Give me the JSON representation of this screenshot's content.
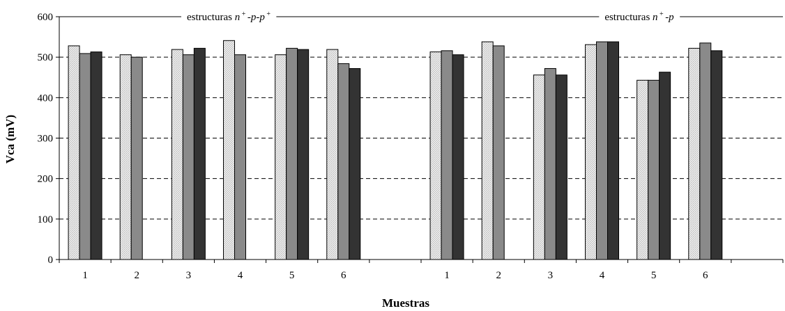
{
  "chart_data": {
    "type": "bar",
    "xlabel": "Muestras",
    "ylabel": "Vca (mV)",
    "ylim": [
      0,
      600
    ],
    "yticks": [
      0,
      100,
      200,
      300,
      400,
      500,
      600
    ],
    "grid": "horizontal-dashed",
    "legend": "none",
    "groups": [
      {
        "label_prefix": "estructuras ",
        "label_math": "n⁺-p-p⁺",
        "label_pre": "n",
        "label_sup": "+",
        "label_mid": "-p-p",
        "label_sup2": "+",
        "categories": [
          "1",
          "2",
          "3",
          "4",
          "5",
          "6"
        ],
        "values": [
          [
            528,
            509,
            513
          ],
          [
            506,
            500,
            null
          ],
          [
            519,
            506,
            522
          ],
          [
            541,
            506,
            null
          ],
          [
            506,
            522,
            519
          ],
          [
            519,
            484,
            472
          ]
        ]
      },
      {
        "label_prefix": "estructuras ",
        "label_math": "n⁺-p",
        "label_pre": "n",
        "label_sup": "+",
        "label_mid": "-p",
        "label_sup2": "",
        "categories": [
          "1",
          "2",
          "3",
          "4",
          "5",
          "6"
        ],
        "values": [
          [
            513,
            516,
            506
          ],
          [
            538,
            528,
            null
          ],
          [
            456,
            472,
            456
          ],
          [
            531,
            538,
            538
          ],
          [
            443,
            443,
            463
          ],
          [
            522,
            535,
            516
          ]
        ]
      }
    ],
    "series_colors": [
      "#e0e0e0",
      "#8a8a8a",
      "#333333"
    ]
  }
}
